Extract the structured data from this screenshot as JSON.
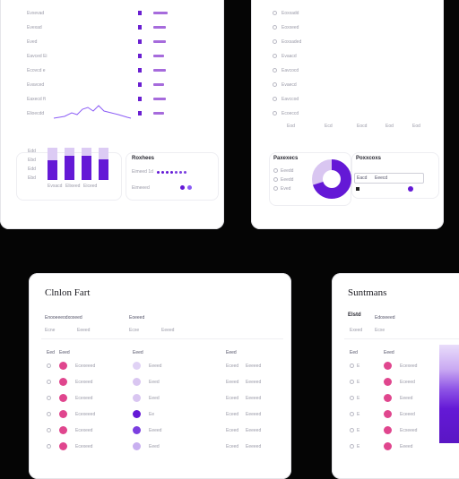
{
  "colors": {
    "accent_purple": "#6419d6",
    "light_purple": "#dccbf4",
    "pink": "#e0468e",
    "lilac": "#d9c6f1",
    "background": "#050505"
  },
  "top_left": {
    "rows": [
      "Evxevad",
      "Evexad",
      "Eved",
      "Eavced Ei",
      "Ecovcd e",
      "Evavced",
      "Eaxecd ft",
      "Elioecdd"
    ],
    "trend_icon": "sparkline-icon",
    "bar_chart": {
      "labels": [
        "Evxacd",
        "Elixeed",
        "Eiceed"
      ],
      "axis_labels": [
        "Edd",
        "Ebd",
        "Edd",
        "Ebd"
      ],
      "fill_fraction": [
        0.75,
        0.95,
        0.95,
        0.8
      ]
    },
    "mini_card": {
      "title": "Roxhees",
      "row1": "Eimeed 1d",
      "row2": "Eimeeed"
    }
  },
  "top_right": {
    "rows": [
      "Eoxxadd",
      "Eoxxeed",
      "Eoxsaded",
      "Evaacd",
      "Eavcocd",
      "Evaecd",
      "Eavccod",
      "Ecoeccd"
    ],
    "footer_labels": [
      "Eod",
      "Ecd",
      "Eocd",
      "Eod",
      "Eod"
    ],
    "donut_card": {
      "title": "Paxexecs",
      "legend": [
        "Eeedd",
        "Eeedd",
        "Eved"
      ],
      "fraction": 0.7
    },
    "summary_card": {
      "title": "Poxxcoxs",
      "field_label": "Eacd",
      "field_value": "Eeecd"
    }
  },
  "bottom_left": {
    "title": "Clnlon Fart",
    "filter": "Enooeeeodxoxeed",
    "filter2": "Eoeeed",
    "chips": [
      "Ecne",
      "Eeeed",
      "Ecxe",
      "Eeeed"
    ],
    "col_headers": [
      "Eed",
      "Eeed",
      "Eeed",
      "Eeed"
    ],
    "rows": [
      {
        "a": "Ecexeeed",
        "b": "Eeeed",
        "c": "Eceed",
        "d": "Eeeeed"
      },
      {
        "a": "Ecexeed",
        "b": "Eeed",
        "c": "Eeeed",
        "d": "Eeeeed"
      },
      {
        "a": "Ecexeed",
        "b": "Eeed",
        "c": "Eceed",
        "d": "Eeeeed"
      },
      {
        "a": "Ecexeeed",
        "b": "Ee",
        "c": "Eceed",
        "d": "Eeeeed"
      },
      {
        "a": "Ecexeed",
        "b": "Eeeed",
        "c": "Eceed",
        "d": "Eeeeed"
      },
      {
        "a": "Ecexeed",
        "b": "Eeed",
        "c": "Eceed",
        "d": "Eeeeed"
      }
    ]
  },
  "bottom_right": {
    "title": "Suntmans",
    "tab1": "Elstd",
    "tab2": "Edoxeeed",
    "chips": [
      "Exeed",
      "Ecxe"
    ],
    "col_headers": [
      "Eed",
      "Eeed"
    ],
    "rows": [
      "Ecexeed",
      "Eceeed",
      "Eeeed",
      "Eceeed",
      "Ecxeeed",
      "Eeeed"
    ]
  }
}
